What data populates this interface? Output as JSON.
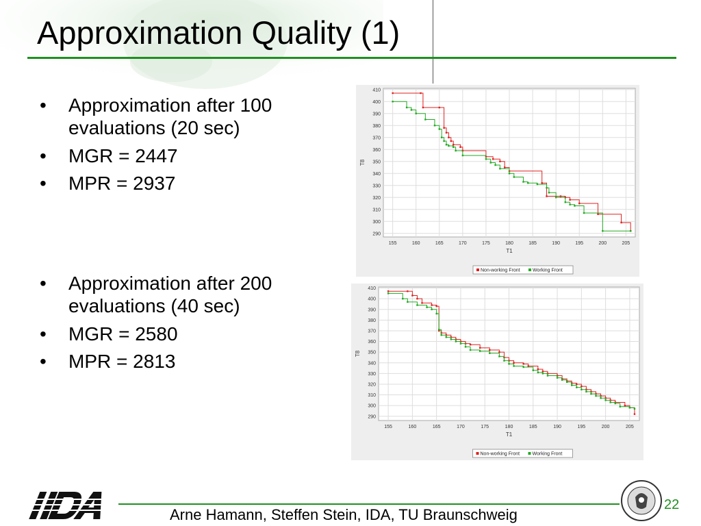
{
  "slide": {
    "title": "Approximation Quality (1)",
    "bullets_top": [
      "Approximation after 100 evaluations (20 sec)",
      "MGR = 2447",
      "MPR = 2937"
    ],
    "bullets_bottom": [
      "Approximation after 200 evaluations (40 sec)",
      "MGR = 2580",
      "MPR = 2813"
    ],
    "footer": "Arne Hamann, Steffen Stein, IDA, TU Braunschweig",
    "page_number": "22",
    "logo_text": "IDA",
    "seal_text": "CAROLO-WILHELMINA BRAUNSCHWEIG"
  },
  "colors": {
    "accent_green": "#1f8f1f",
    "nonworking": "#e02020",
    "working": "#22aa22"
  },
  "chart_data": [
    {
      "type": "line",
      "xlabel": "T1",
      "ylabel": "T8",
      "xlim": [
        153,
        207
      ],
      "ylim": [
        287,
        411
      ],
      "xticks": [
        155,
        160,
        165,
        170,
        175,
        180,
        185,
        190,
        195,
        200,
        205
      ],
      "yticks": [
        290,
        300,
        310,
        320,
        330,
        340,
        350,
        360,
        370,
        380,
        390,
        400,
        410
      ],
      "grid": true,
      "legend": "bottom",
      "series": [
        {
          "name": "Non-working Front",
          "color": "#e02020",
          "x": [
            155,
            161,
            161.5,
            165,
            166,
            166.5,
            167,
            167.5,
            168,
            169.5,
            170,
            175,
            176.5,
            178,
            179,
            180,
            187,
            188,
            191,
            192,
            193,
            195,
            199,
            204,
            206
          ],
          "y": [
            407,
            407,
            395,
            395,
            378,
            374,
            370,
            367,
            364,
            362,
            359,
            354,
            352,
            350,
            345,
            342,
            332,
            321,
            321,
            320,
            318,
            315,
            306,
            299,
            292
          ]
        },
        {
          "name": "Working Front",
          "color": "#22aa22",
          "x": [
            155,
            158,
            159,
            160,
            162,
            164,
            165,
            165.5,
            166,
            166.5,
            167,
            168,
            168.5,
            170,
            175,
            176,
            177,
            178,
            180,
            181,
            183,
            184,
            186,
            188,
            188.5,
            190,
            192,
            193,
            194,
            196,
            200,
            206
          ],
          "y": [
            400,
            395,
            393,
            390,
            385,
            380,
            377,
            370,
            367,
            364,
            363,
            362,
            359,
            355,
            352,
            349,
            347,
            344,
            340,
            337,
            333,
            332,
            331,
            328,
            324,
            320,
            316,
            314,
            313,
            307,
            292,
            292
          ]
        }
      ]
    },
    {
      "type": "line",
      "xlabel": "T1",
      "ylabel": "T8",
      "xlim": [
        153,
        207
      ],
      "ylim": [
        286,
        411
      ],
      "xticks": [
        155,
        160,
        165,
        170,
        175,
        180,
        185,
        190,
        195,
        200,
        205
      ],
      "yticks": [
        290,
        300,
        310,
        320,
        330,
        340,
        350,
        360,
        370,
        380,
        390,
        400,
        410
      ],
      "grid": true,
      "legend": "bottom",
      "series": [
        {
          "name": "Non-working Front",
          "color": "#e02020",
          "x": [
            155,
            159,
            160,
            161,
            162,
            164,
            165,
            165.5,
            166,
            167,
            168,
            169,
            170,
            171,
            172,
            174,
            176,
            178,
            179,
            180,
            181,
            183,
            184,
            186,
            187,
            188,
            190,
            191,
            192,
            193,
            194,
            195,
            196,
            197,
            198,
            199,
            200,
            201,
            202,
            204,
            205,
            206
          ],
          "y": [
            407,
            407,
            403,
            400,
            396,
            394,
            393,
            370,
            368,
            366,
            364,
            362,
            360,
            358,
            357,
            354,
            352,
            350,
            345,
            342,
            340,
            339,
            337,
            334,
            332,
            330,
            328,
            325,
            323,
            321,
            320,
            318,
            315,
            313,
            311,
            309,
            307,
            305,
            303,
            300,
            298,
            292
          ]
        },
        {
          "name": "Working Front",
          "color": "#22aa22",
          "x": [
            155,
            158,
            159,
            161,
            163,
            164,
            165,
            165.5,
            166,
            167,
            168,
            169,
            170,
            171,
            172,
            174,
            176,
            178,
            179,
            180,
            181,
            183,
            185,
            186,
            187,
            188,
            190,
            191,
            192,
            193,
            194,
            195,
            196,
            197,
            198,
            199,
            200,
            201,
            202,
            203,
            205,
            206
          ],
          "y": [
            405,
            400,
            397,
            394,
            392,
            390,
            386,
            371,
            366,
            364,
            362,
            360,
            358,
            355,
            352,
            351,
            349,
            346,
            342,
            339,
            337,
            336,
            333,
            331,
            330,
            328,
            326,
            324,
            322,
            319,
            317,
            315,
            313,
            311,
            309,
            307,
            305,
            303,
            302,
            299,
            298,
            297
          ]
        }
      ]
    }
  ]
}
